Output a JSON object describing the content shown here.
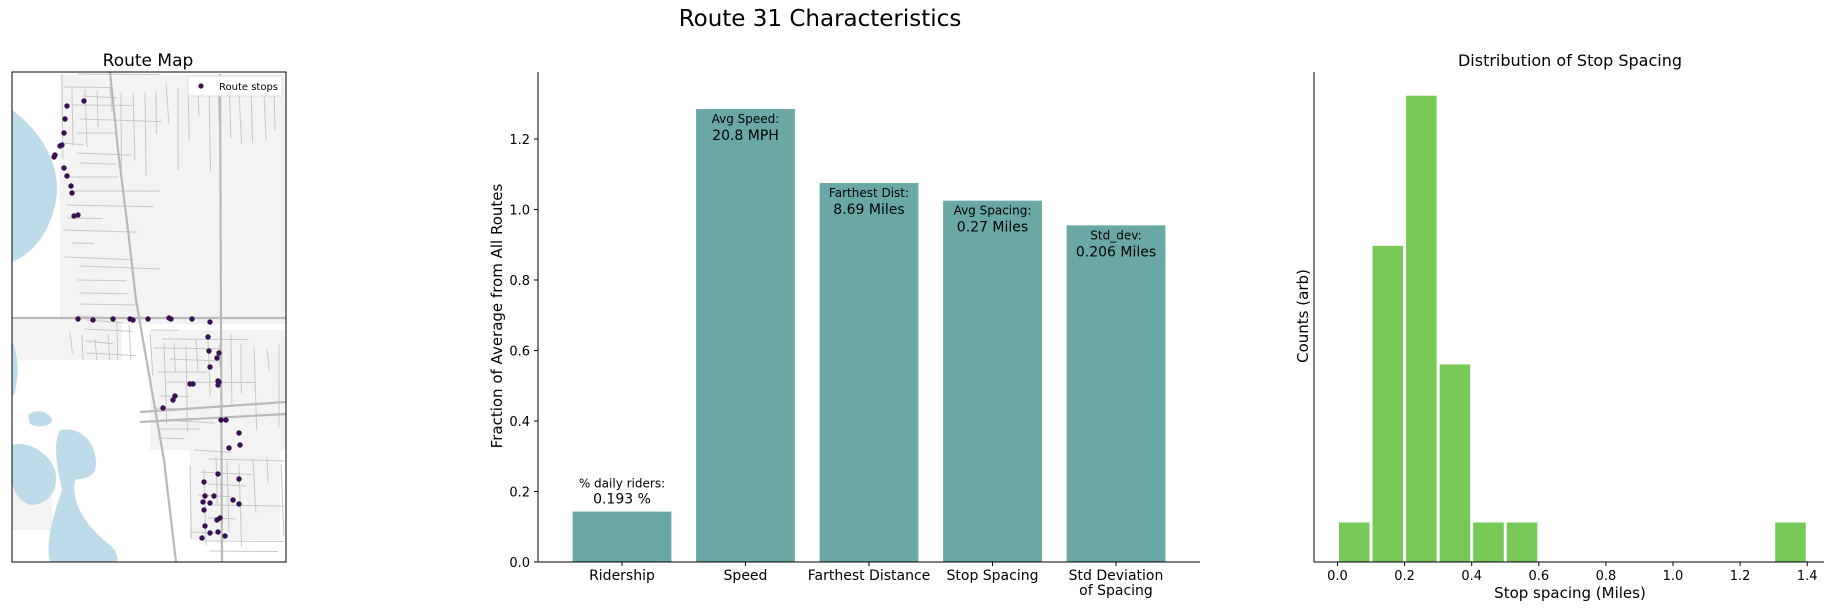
{
  "figure": {
    "title": "Route 31 Characteristics"
  },
  "map_panel": {
    "title": "Route Map",
    "legend_label": "Route stops",
    "stop_color": "#3b0f54",
    "water_color": "#bddbe8",
    "road_color": "#c8c8c8"
  },
  "chart_data": [
    {
      "type": "bar",
      "ylabel": "Fraction of Average from All Routes",
      "xlabel": "",
      "ylim": [
        0,
        1.39
      ],
      "yticks": [
        "0.0",
        "0.2",
        "0.4",
        "0.6",
        "0.8",
        "1.0",
        "1.2"
      ],
      "categories": [
        "Ridership",
        "Speed",
        "Farthest Distance",
        "Stop Spacing",
        "Std Deviation\nof Spacing"
      ],
      "values": [
        0.143,
        1.285,
        1.075,
        1.025,
        0.955
      ],
      "annotations": [
        {
          "label": "% daily riders:",
          "value": "0.193 %"
        },
        {
          "label": "Avg Speed:",
          "value": "20.8 MPH"
        },
        {
          "label": "Farthest Dist:",
          "value": "8.69 Miles"
        },
        {
          "label": "Avg Spacing:",
          "value": "0.27 Miles"
        },
        {
          "label": "Std_dev:",
          "value": "0.206 Miles"
        }
      ],
      "color": "#69a8a5"
    },
    {
      "type": "bar",
      "title": "Distribution of Stop Spacing",
      "xlabel": "Stop spacing (Miles)",
      "ylabel": "Counts (arb)",
      "xlim": [
        -0.07,
        1.45
      ],
      "xticks": [
        "0.0",
        "0.2",
        "0.4",
        "0.6",
        "0.8",
        "1.0",
        "1.2",
        "1.4"
      ],
      "ylim": [
        0,
        12.4
      ],
      "bins": [
        {
          "start": 0.0,
          "end": 0.1,
          "count": 1
        },
        {
          "start": 0.1,
          "end": 0.2,
          "count": 8
        },
        {
          "start": 0.2,
          "end": 0.3,
          "count": 11.8
        },
        {
          "start": 0.3,
          "end": 0.4,
          "count": 5
        },
        {
          "start": 0.4,
          "end": 0.5,
          "count": 1
        },
        {
          "start": 0.5,
          "end": 0.6,
          "count": 1
        },
        {
          "start": 1.3,
          "end": 1.4,
          "count": 1
        }
      ],
      "color": "#77c957"
    }
  ]
}
